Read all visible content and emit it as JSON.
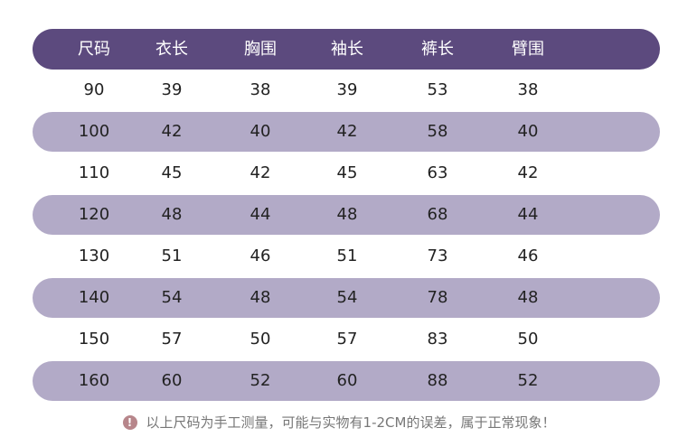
{
  "colors": {
    "header_bg": "#5c4a7e",
    "stripe_bg": "#b2aac7",
    "note_icon_bg": "#b7868b"
  },
  "table": {
    "headers": [
      "尺码",
      "衣长",
      "胸围",
      "袖长",
      "裤长",
      "臂围"
    ],
    "rows": [
      [
        "90",
        "39",
        "38",
        "39",
        "53",
        "38"
      ],
      [
        "100",
        "42",
        "40",
        "42",
        "58",
        "40"
      ],
      [
        "110",
        "45",
        "42",
        "45",
        "63",
        "42"
      ],
      [
        "120",
        "48",
        "44",
        "48",
        "68",
        "44"
      ],
      [
        "130",
        "51",
        "46",
        "51",
        "73",
        "46"
      ],
      [
        "140",
        "54",
        "48",
        "54",
        "78",
        "48"
      ],
      [
        "150",
        "57",
        "50",
        "57",
        "83",
        "50"
      ],
      [
        "160",
        "60",
        "52",
        "60",
        "88",
        "52"
      ]
    ]
  },
  "note": {
    "icon": "exclamation-icon",
    "icon_glyph": "!",
    "text": "以上尺码为手工测量，可能与实物有1-2CM的误差，属于正常现象！"
  }
}
